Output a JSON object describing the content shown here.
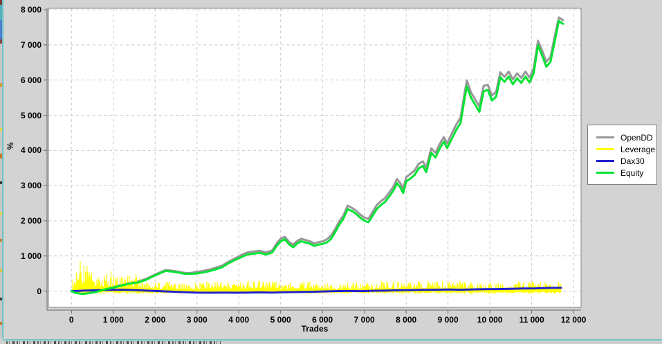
{
  "axes": {
    "x_label": "Trades",
    "y_label": "%"
  },
  "legend": {
    "position": "right-middle",
    "background": "#ffffff",
    "border_color": "#808080"
  },
  "window_edges": {
    "left_sliver_accent": "#6ec8c8",
    "bottom_sliver_accent": "#6ec8c8"
  },
  "colors": {
    "panel_background": "#d3d3d3",
    "plot_background": "#ffffff",
    "gridline": "#c9c9c9",
    "plot_border": "#848484",
    "tick_text": "#000000"
  },
  "chart_data": {
    "type": "line",
    "title": "",
    "xlabel": "Trades",
    "ylabel": "%",
    "grid": true,
    "legend_position": "right",
    "xlim": [
      -550,
      12180
    ],
    "ylim": [
      -460,
      8040
    ],
    "x_ticks": [
      0,
      1000,
      2000,
      3000,
      4000,
      5000,
      6000,
      7000,
      8000,
      9000,
      10000,
      11000,
      12000
    ],
    "x_tick_labels": [
      "0",
      "1 000",
      "2 000",
      "3 000",
      "4 000",
      "5 000",
      "6 000",
      "7 000",
      "8 000",
      "9 000",
      "10 000",
      "11 000",
      "12 000"
    ],
    "y_ticks": [
      0,
      1000,
      2000,
      3000,
      4000,
      5000,
      6000,
      7000,
      8000
    ],
    "y_tick_labels": [
      "0",
      "1 000",
      "2 000",
      "3 000",
      "4 000",
      "5 000",
      "6 000",
      "7 000",
      "8 000"
    ],
    "series": [
      {
        "name": "OpenDD",
        "type": "line",
        "color": "#979797",
        "width": 3,
        "x": [
          0,
          100,
          250,
          400,
          600,
          800,
          1000,
          1200,
          1400,
          1600,
          1800,
          1950,
          2100,
          2250,
          2400,
          2550,
          2700,
          2850,
          3000,
          3150,
          3300,
          3450,
          3600,
          3750,
          3900,
          4050,
          4200,
          4350,
          4500,
          4650,
          4800,
          4900,
          5000,
          5100,
          5200,
          5300,
          5400,
          5500,
          5600,
          5700,
          5800,
          5900,
          6000,
          6100,
          6200,
          6300,
          6400,
          6500,
          6600,
          6700,
          6800,
          6900,
          7000,
          7100,
          7200,
          7300,
          7400,
          7500,
          7600,
          7700,
          7780,
          7860,
          7930,
          8000,
          8100,
          8200,
          8300,
          8400,
          8480,
          8550,
          8600,
          8700,
          8800,
          8900,
          8980,
          9100,
          9200,
          9300,
          9400,
          9450,
          9550,
          9650,
          9750,
          9850,
          9950,
          10050,
          10150,
          10250,
          10350,
          10450,
          10550,
          10650,
          10750,
          10850,
          10950,
          11050,
          11150,
          11250,
          11350,
          11450,
          11550,
          11650,
          11750
        ],
        "y": [
          10,
          -40,
          -70,
          -50,
          -10,
          60,
          125,
          185,
          240,
          275,
          355,
          445,
          525,
          600,
          580,
          555,
          520,
          515,
          550,
          575,
          615,
          665,
          725,
          835,
          925,
          1020,
          1100,
          1125,
          1150,
          1100,
          1160,
          1350,
          1490,
          1545,
          1400,
          1320,
          1430,
          1490,
          1450,
          1420,
          1355,
          1390,
          1415,
          1470,
          1570,
          1760,
          1980,
          2150,
          2430,
          2370,
          2290,
          2180,
          2090,
          2050,
          2260,
          2450,
          2560,
          2650,
          2810,
          2980,
          3190,
          3070,
          2910,
          3240,
          3330,
          3430,
          3620,
          3690,
          3510,
          3830,
          4060,
          3930,
          4180,
          4380,
          4200,
          4500,
          4740,
          4930,
          5650,
          5990,
          5650,
          5450,
          5250,
          5830,
          5870,
          5560,
          5670,
          6220,
          6090,
          6240,
          6020,
          6190,
          6060,
          6240,
          6070,
          6340,
          7120,
          6840,
          6520,
          6660,
          7240,
          7780,
          7700
        ]
      },
      {
        "name": "Leverage",
        "type": "spikes",
        "color": "#ffff00",
        "width": 1.2,
        "envelope_x": [
          30,
          80,
          150,
          250,
          350,
          450,
          550,
          650,
          750,
          900,
          1100,
          1300,
          1500,
          1700,
          1900,
          2100,
          2400,
          2700,
          3000,
          3300,
          3600,
          3900,
          4200,
          4500,
          4800,
          5100,
          5400,
          5700,
          6000,
          6300,
          6600,
          6900,
          7200,
          7500,
          7800,
          8100,
          8400,
          8700,
          9000,
          9300,
          9600,
          9900,
          10200,
          10500,
          10800,
          11100,
          11400,
          11650
        ],
        "envelope_max": [
          400,
          750,
          870,
          860,
          700,
          780,
          650,
          600,
          560,
          600,
          460,
          500,
          550,
          300,
          230,
          250,
          280,
          230,
          250,
          300,
          280,
          250,
          300,
          350,
          280,
          250,
          260,
          300,
          250,
          220,
          250,
          280,
          250,
          300,
          260,
          280,
          300,
          320,
          280,
          300,
          250,
          230,
          250,
          280,
          300,
          280,
          250,
          280
        ],
        "base_min": -70,
        "x_start": 30,
        "x_end": 11700
      },
      {
        "name": "Dax30",
        "type": "line",
        "color": "#2222cc",
        "width": 3,
        "x": [
          0,
          300,
          600,
          900,
          1200,
          1500,
          1800,
          2100,
          2400,
          2700,
          3000,
          3300,
          3600,
          3900,
          4200,
          4500,
          4800,
          5100,
          5400,
          5700,
          6000,
          6300,
          6600,
          6900,
          7200,
          7500,
          7800,
          8100,
          8400,
          8700,
          9000,
          9300,
          9600,
          9900,
          10200,
          10500,
          10800,
          11100,
          11400,
          11700
        ],
        "y": [
          0,
          15,
          25,
          35,
          40,
          30,
          15,
          0,
          -15,
          -30,
          -40,
          -45,
          -40,
          -45,
          -40,
          -35,
          -40,
          -30,
          -25,
          -20,
          -10,
          0,
          5,
          0,
          10,
          15,
          25,
          30,
          35,
          40,
          45,
          40,
          50,
          55,
          60,
          65,
          75,
          80,
          90,
          95
        ]
      },
      {
        "name": "Equity",
        "type": "line",
        "color": "#00e432",
        "width": 3,
        "x": [
          0,
          100,
          250,
          400,
          600,
          800,
          1000,
          1200,
          1400,
          1600,
          1800,
          1950,
          2100,
          2250,
          2400,
          2550,
          2700,
          2850,
          3000,
          3150,
          3300,
          3450,
          3600,
          3750,
          3900,
          4050,
          4200,
          4350,
          4500,
          4650,
          4800,
          4900,
          5000,
          5100,
          5200,
          5300,
          5400,
          5500,
          5600,
          5700,
          5800,
          5900,
          6000,
          6100,
          6200,
          6300,
          6400,
          6500,
          6600,
          6700,
          6800,
          6900,
          7000,
          7100,
          7200,
          7300,
          7400,
          7500,
          7600,
          7700,
          7780,
          7860,
          7930,
          8000,
          8100,
          8200,
          8300,
          8400,
          8480,
          8550,
          8600,
          8700,
          8800,
          8900,
          8980,
          9100,
          9200,
          9300,
          9400,
          9450,
          9550,
          9650,
          9750,
          9850,
          9950,
          10050,
          10150,
          10250,
          10350,
          10450,
          10550,
          10650,
          10750,
          10850,
          10950,
          11050,
          11150,
          11250,
          11350,
          11450,
          11550,
          11650,
          11750
        ],
        "y": [
          0,
          -50,
          -80,
          -60,
          -20,
          50,
          100,
          160,
          215,
          250,
          330,
          420,
          500,
          575,
          555,
          530,
          495,
          490,
          505,
          530,
          570,
          620,
          680,
          790,
          880,
          960,
          1040,
          1065,
          1090,
          1040,
          1100,
          1280,
          1420,
          1475,
          1330,
          1250,
          1360,
          1420,
          1380,
          1350,
          1285,
          1320,
          1345,
          1380,
          1480,
          1670,
          1890,
          2060,
          2330,
          2280,
          2200,
          2090,
          2000,
          1960,
          2150,
          2340,
          2450,
          2540,
          2700,
          2870,
          3070,
          2950,
          2790,
          3120,
          3200,
          3300,
          3490,
          3560,
          3380,
          3700,
          3930,
          3800,
          4050,
          4250,
          4070,
          4350,
          4590,
          4780,
          5500,
          5820,
          5500,
          5300,
          5100,
          5680,
          5720,
          5420,
          5530,
          6080,
          5950,
          6100,
          5880,
          6050,
          5920,
          6100,
          5930,
          6200,
          6990,
          6700,
          6380,
          6520,
          7100,
          7680,
          7600
        ]
      }
    ]
  }
}
